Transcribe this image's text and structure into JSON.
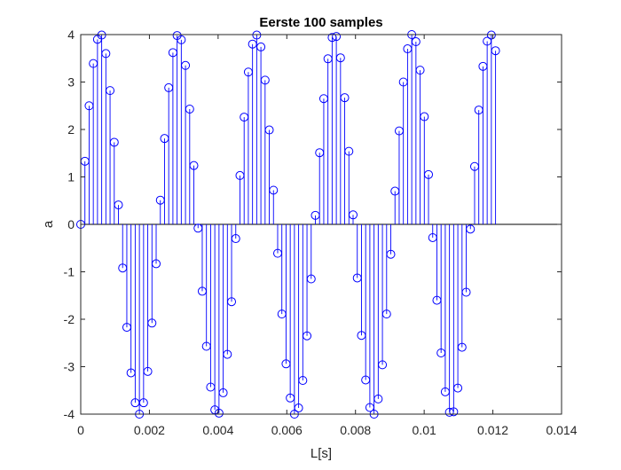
{
  "chart_data": {
    "type": "stem",
    "title": "Eerste 100 samples",
    "xlabel": "L[s]",
    "ylabel": "a",
    "xlim": [
      0,
      0.014
    ],
    "ylim": [
      -4,
      4
    ],
    "xticks": [
      0,
      0.002,
      0.004,
      0.006,
      0.008,
      0.01,
      0.012,
      0.014
    ],
    "xtick_labels": [
      "0",
      "0.002",
      "0.004",
      "0.006",
      "0.008",
      "0.01",
      "0.012",
      "0.014"
    ],
    "yticks": [
      -4,
      -3,
      -2,
      -1,
      0,
      1,
      2,
      3,
      4
    ],
    "ytick_labels": [
      "-4",
      "-3",
      "-2",
      "-1",
      "0",
      "1",
      "2",
      "3",
      "4"
    ],
    "grid": false,
    "series": [
      {
        "color": "#0000ff",
        "marker": "circle",
        "sample_period": 0.000122,
        "x": [
          0.0,
          0.000122,
          0.000244,
          0.000366,
          0.000488,
          0.00061,
          0.000732,
          0.000854,
          0.000976,
          0.001098,
          0.00122,
          0.001342,
          0.001464,
          0.001586,
          0.001708,
          0.00183,
          0.001952,
          0.002074,
          0.002196,
          0.002318,
          0.00244,
          0.002562,
          0.002684,
          0.002806,
          0.002928,
          0.00305,
          0.003172,
          0.003294,
          0.003416,
          0.003538,
          0.00366,
          0.003782,
          0.003904,
          0.004026,
          0.004148,
          0.00427,
          0.004392,
          0.004514,
          0.004636,
          0.004758,
          0.00488,
          0.005002,
          0.005124,
          0.005246,
          0.005368,
          0.00549,
          0.005612,
          0.005734,
          0.005856,
          0.005978,
          0.0061,
          0.006222,
          0.006344,
          0.006466,
          0.006588,
          0.00671,
          0.006832,
          0.006954,
          0.007076,
          0.007198,
          0.00732,
          0.007442,
          0.007564,
          0.007686,
          0.007808,
          0.00793,
          0.008052,
          0.008174,
          0.008296,
          0.008418,
          0.00854,
          0.008662,
          0.008784,
          0.008906,
          0.009028,
          0.00915,
          0.009272,
          0.009394,
          0.009516,
          0.009638,
          0.00976,
          0.009882,
          0.010004,
          0.010126,
          0.010248,
          0.01037,
          0.010492,
          0.010614,
          0.010736,
          0.010858,
          0.01098,
          0.011102,
          0.011224,
          0.011346,
          0.011468,
          0.01159,
          0.011712,
          0.011834,
          0.011956,
          0.012078
        ],
        "y": [
          0.0,
          1.33,
          2.5,
          3.39,
          3.9,
          3.99,
          3.6,
          2.82,
          1.73,
          0.41,
          -0.92,
          -2.17,
          -3.13,
          -3.76,
          -4.0,
          -3.76,
          -3.1,
          -2.08,
          -0.83,
          0.51,
          1.81,
          2.88,
          3.62,
          3.98,
          3.89,
          3.35,
          2.43,
          1.24,
          -0.08,
          -1.41,
          -2.57,
          -3.43,
          -3.91,
          -3.98,
          -3.55,
          -2.74,
          -1.63,
          -0.3,
          1.03,
          2.26,
          3.21,
          3.8,
          3.99,
          3.74,
          3.04,
          1.99,
          0.72,
          -0.61,
          -1.89,
          -2.94,
          -3.66,
          -4.0,
          -3.87,
          -3.29,
          -2.35,
          -1.15,
          0.19,
          1.51,
          2.65,
          3.49,
          3.94,
          3.96,
          3.51,
          2.67,
          1.54,
          0.2,
          -1.13,
          -2.34,
          -3.28,
          -3.86,
          -4.0,
          -3.68,
          -2.96,
          -1.89,
          -0.63,
          0.7,
          1.97,
          3.0,
          3.7,
          4.0,
          3.85,
          3.25,
          2.27,
          1.05,
          -0.28,
          -1.6,
          -2.71,
          -3.53,
          -3.96,
          -3.95,
          -3.45,
          -2.59,
          -1.43,
          -0.1,
          1.22,
          2.41,
          3.33,
          3.86,
          3.99,
          3.66
        ]
      }
    ]
  }
}
